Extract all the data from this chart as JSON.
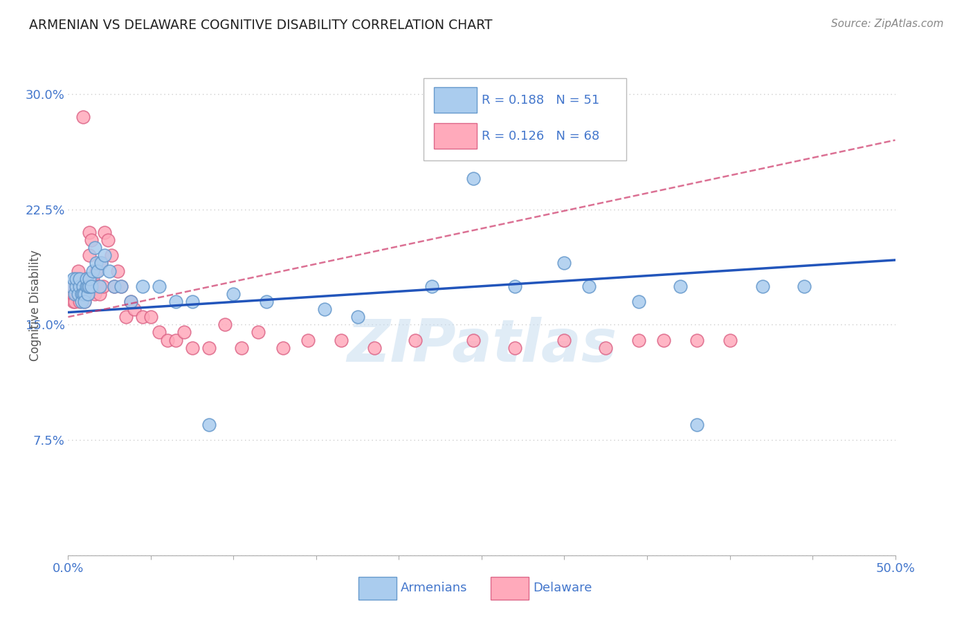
{
  "title": "ARMENIAN VS DELAWARE COGNITIVE DISABILITY CORRELATION CHART",
  "source": "Source: ZipAtlas.com",
  "ylabel": "Cognitive Disability",
  "xlim": [
    0.0,
    0.5
  ],
  "ylim": [
    0.0,
    0.325
  ],
  "yticks": [
    0.0,
    0.075,
    0.15,
    0.225,
    0.3
  ],
  "yticklabels": [
    "",
    "7.5%",
    "15.0%",
    "22.5%",
    "30.0%"
  ],
  "grid_color": "#cccccc",
  "background_color": "#ffffff",
  "title_color": "#222222",
  "ylabel_color": "#555555",
  "tick_label_color": "#4477cc",
  "armenians_color": "#aaccee",
  "armenians_edge_color": "#6699cc",
  "delaware_color": "#ffaabb",
  "delaware_edge_color": "#dd6688",
  "armenians_R": 0.188,
  "armenians_N": 51,
  "delaware_R": 0.126,
  "delaware_N": 68,
  "armenians_line_color": "#2255bb",
  "delaware_line_color": "#cc3366",
  "watermark": "ZIPatlas",
  "armenians_x": [
    0.002,
    0.003,
    0.004,
    0.005,
    0.005,
    0.006,
    0.007,
    0.007,
    0.008,
    0.008,
    0.009,
    0.009,
    0.01,
    0.01,
    0.011,
    0.011,
    0.012,
    0.012,
    0.013,
    0.013,
    0.014,
    0.015,
    0.016,
    0.017,
    0.018,
    0.019,
    0.02,
    0.022,
    0.025,
    0.028,
    0.032,
    0.038,
    0.045,
    0.055,
    0.065,
    0.075,
    0.085,
    0.1,
    0.12,
    0.155,
    0.175,
    0.22,
    0.245,
    0.27,
    0.3,
    0.315,
    0.345,
    0.37,
    0.38,
    0.42,
    0.445
  ],
  "armenians_y": [
    0.175,
    0.18,
    0.17,
    0.175,
    0.18,
    0.17,
    0.175,
    0.18,
    0.17,
    0.165,
    0.175,
    0.17,
    0.17,
    0.165,
    0.175,
    0.18,
    0.17,
    0.175,
    0.175,
    0.18,
    0.175,
    0.185,
    0.2,
    0.19,
    0.185,
    0.175,
    0.19,
    0.195,
    0.185,
    0.175,
    0.175,
    0.165,
    0.175,
    0.175,
    0.165,
    0.165,
    0.085,
    0.17,
    0.165,
    0.16,
    0.155,
    0.175,
    0.245,
    0.175,
    0.19,
    0.175,
    0.165,
    0.175,
    0.085,
    0.175,
    0.175
  ],
  "delaware_x": [
    0.002,
    0.003,
    0.003,
    0.004,
    0.005,
    0.005,
    0.006,
    0.006,
    0.007,
    0.007,
    0.008,
    0.008,
    0.009,
    0.009,
    0.009,
    0.01,
    0.01,
    0.01,
    0.011,
    0.011,
    0.012,
    0.012,
    0.013,
    0.013,
    0.014,
    0.014,
    0.015,
    0.015,
    0.016,
    0.016,
    0.017,
    0.018,
    0.019,
    0.02,
    0.021,
    0.022,
    0.024,
    0.026,
    0.028,
    0.03,
    0.032,
    0.035,
    0.038,
    0.04,
    0.045,
    0.05,
    0.055,
    0.06,
    0.065,
    0.07,
    0.075,
    0.085,
    0.095,
    0.105,
    0.115,
    0.13,
    0.145,
    0.165,
    0.185,
    0.21,
    0.245,
    0.27,
    0.3,
    0.325,
    0.345,
    0.36,
    0.38,
    0.4
  ],
  "delaware_y": [
    0.175,
    0.165,
    0.17,
    0.165,
    0.17,
    0.175,
    0.18,
    0.185,
    0.175,
    0.165,
    0.17,
    0.175,
    0.285,
    0.175,
    0.17,
    0.175,
    0.165,
    0.17,
    0.175,
    0.18,
    0.17,
    0.175,
    0.195,
    0.21,
    0.18,
    0.205,
    0.175,
    0.18,
    0.17,
    0.175,
    0.185,
    0.175,
    0.17,
    0.19,
    0.175,
    0.21,
    0.205,
    0.195,
    0.175,
    0.185,
    0.175,
    0.155,
    0.165,
    0.16,
    0.155,
    0.155,
    0.145,
    0.14,
    0.14,
    0.145,
    0.135,
    0.135,
    0.15,
    0.135,
    0.145,
    0.135,
    0.14,
    0.14,
    0.135,
    0.14,
    0.14,
    0.135,
    0.14,
    0.135,
    0.14,
    0.14,
    0.14,
    0.14
  ]
}
